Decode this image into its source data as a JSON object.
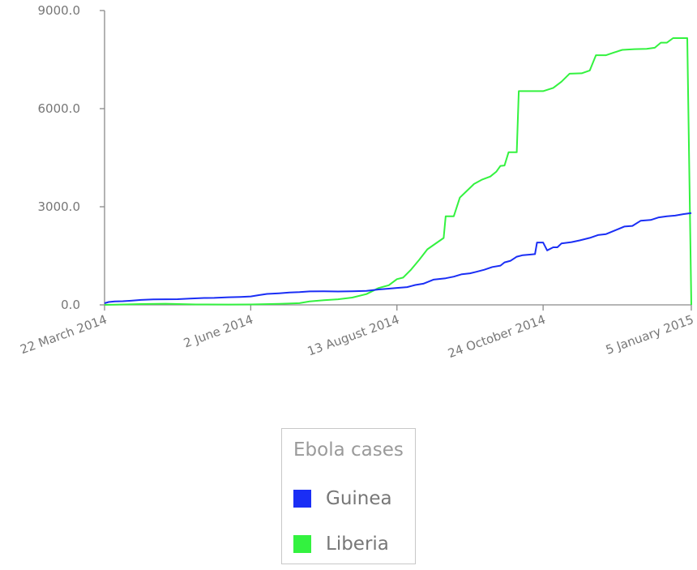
{
  "chart_data": {
    "type": "line",
    "x_axis": {
      "kind": "date",
      "range": [
        "2014-03-22",
        "2015-01-05"
      ],
      "ticks": [
        {
          "date": "2014-03-22",
          "label": "22 March 2014"
        },
        {
          "date": "2014-06-02",
          "label": "2 June 2014"
        },
        {
          "date": "2014-08-13",
          "label": "13 August 2014"
        },
        {
          "date": "2014-10-24",
          "label": "24 October 2014"
        },
        {
          "date": "2015-01-05",
          "label": "5 January 2015"
        }
      ]
    },
    "y_axis": {
      "range": [
        0,
        9000
      ],
      "ticks": [
        {
          "value": 0,
          "label": "0.0"
        },
        {
          "value": 3000,
          "label": "3000.0"
        },
        {
          "value": 6000,
          "label": "6000.0"
        },
        {
          "value": 9000,
          "label": "9000.0"
        }
      ]
    },
    "grid": false,
    "legend": {
      "title": "Ebola cases",
      "placement": "bottom-center"
    },
    "series": [
      {
        "name": "Guinea",
        "color": "#1a2ef5",
        "points": [
          [
            "2014-03-22",
            49
          ],
          [
            "2014-03-24",
            86
          ],
          [
            "2014-03-27",
            103
          ],
          [
            "2014-03-31",
            112
          ],
          [
            "2014-04-04",
            127
          ],
          [
            "2014-04-09",
            151
          ],
          [
            "2014-04-15",
            168
          ],
          [
            "2014-04-21",
            172
          ],
          [
            "2014-04-27",
            174
          ],
          [
            "2014-05-03",
            190
          ],
          [
            "2014-05-10",
            211
          ],
          [
            "2014-05-15",
            214
          ],
          [
            "2014-05-22",
            232
          ],
          [
            "2014-05-28",
            244
          ],
          [
            "2014-06-02",
            257
          ],
          [
            "2014-06-06",
            298
          ],
          [
            "2014-06-10",
            335
          ],
          [
            "2014-06-16",
            355
          ],
          [
            "2014-06-21",
            376
          ],
          [
            "2014-06-26",
            389
          ],
          [
            "2014-07-01",
            412
          ],
          [
            "2014-07-08",
            415
          ],
          [
            "2014-07-15",
            410
          ],
          [
            "2014-07-22",
            415
          ],
          [
            "2014-07-29",
            427
          ],
          [
            "2014-08-04",
            472
          ],
          [
            "2014-08-09",
            495
          ],
          [
            "2014-08-13",
            519
          ],
          [
            "2014-08-18",
            543
          ],
          [
            "2014-08-22",
            607
          ],
          [
            "2014-08-26",
            648
          ],
          [
            "2014-08-31",
            771
          ],
          [
            "2014-09-06",
            812
          ],
          [
            "2014-09-10",
            862
          ],
          [
            "2014-09-14",
            936
          ],
          [
            "2014-09-18",
            965
          ],
          [
            "2014-09-21",
            1008
          ],
          [
            "2014-09-25",
            1074
          ],
          [
            "2014-09-29",
            1157
          ],
          [
            "2014-10-03",
            1199
          ],
          [
            "2014-10-05",
            1298
          ],
          [
            "2014-10-08",
            1350
          ],
          [
            "2014-10-11",
            1472
          ],
          [
            "2014-10-14",
            1519
          ],
          [
            "2014-10-18",
            1540
          ],
          [
            "2014-10-20",
            1553
          ],
          [
            "2014-10-21",
            1906
          ],
          [
            "2014-10-24",
            1906
          ],
          [
            "2014-10-26",
            1667
          ],
          [
            "2014-10-29",
            1760
          ],
          [
            "2014-10-31",
            1760
          ],
          [
            "2014-11-02",
            1878
          ],
          [
            "2014-11-07",
            1919
          ],
          [
            "2014-11-11",
            1971
          ],
          [
            "2014-11-16",
            2047
          ],
          [
            "2014-11-20",
            2134
          ],
          [
            "2014-11-24",
            2164
          ],
          [
            "2014-11-29",
            2292
          ],
          [
            "2014-12-03",
            2394
          ],
          [
            "2014-12-07",
            2416
          ],
          [
            "2014-12-11",
            2571
          ],
          [
            "2014-12-16",
            2597
          ],
          [
            "2014-12-20",
            2675
          ],
          [
            "2014-12-24",
            2707
          ],
          [
            "2014-12-28",
            2730
          ],
          [
            "2015-01-01",
            2775
          ],
          [
            "2015-01-05",
            2806
          ]
        ]
      },
      {
        "name": "Liberia",
        "color": "#33f23f",
        "points": [
          [
            "2014-03-22",
            0
          ],
          [
            "2014-03-27",
            8
          ],
          [
            "2014-04-09",
            26
          ],
          [
            "2014-04-21",
            34
          ],
          [
            "2014-05-06",
            13
          ],
          [
            "2014-05-22",
            11
          ],
          [
            "2014-06-02",
            13
          ],
          [
            "2014-06-16",
            33
          ],
          [
            "2014-06-26",
            51
          ],
          [
            "2014-07-01",
            107
          ],
          [
            "2014-07-08",
            142
          ],
          [
            "2014-07-15",
            172
          ],
          [
            "2014-07-22",
            224
          ],
          [
            "2014-07-29",
            329
          ],
          [
            "2014-08-04",
            516
          ],
          [
            "2014-08-09",
            599
          ],
          [
            "2014-08-13",
            786
          ],
          [
            "2014-08-16",
            834
          ],
          [
            "2014-08-20",
            1082
          ],
          [
            "2014-08-24",
            1378
          ],
          [
            "2014-08-28",
            1698
          ],
          [
            "2014-09-01",
            1871
          ],
          [
            "2014-09-05",
            2046
          ],
          [
            "2014-09-06",
            2710
          ],
          [
            "2014-09-10",
            2710
          ],
          [
            "2014-09-13",
            3280
          ],
          [
            "2014-09-16",
            3458
          ],
          [
            "2014-09-20",
            3696
          ],
          [
            "2014-09-24",
            3834
          ],
          [
            "2014-09-28",
            3924
          ],
          [
            "2014-10-01",
            4076
          ],
          [
            "2014-10-03",
            4249
          ],
          [
            "2014-10-05",
            4262
          ],
          [
            "2014-10-07",
            4665
          ],
          [
            "2014-10-11",
            4665
          ],
          [
            "2014-10-12",
            6535
          ],
          [
            "2014-10-24",
            6535
          ],
          [
            "2014-10-29",
            6635
          ],
          [
            "2014-11-02",
            6822
          ],
          [
            "2014-11-06",
            7069
          ],
          [
            "2014-11-12",
            7082
          ],
          [
            "2014-11-16",
            7168
          ],
          [
            "2014-11-19",
            7635
          ],
          [
            "2014-11-24",
            7635
          ],
          [
            "2014-11-28",
            7719
          ],
          [
            "2014-12-02",
            7797
          ],
          [
            "2014-12-08",
            7819
          ],
          [
            "2014-12-14",
            7830
          ],
          [
            "2014-12-18",
            7862
          ],
          [
            "2014-12-21",
            8018
          ],
          [
            "2014-12-24",
            8018
          ],
          [
            "2014-12-27",
            8157
          ],
          [
            "2015-01-02",
            8157
          ],
          [
            "2015-01-03",
            8157
          ],
          [
            "2015-01-05",
            0
          ]
        ]
      }
    ]
  }
}
